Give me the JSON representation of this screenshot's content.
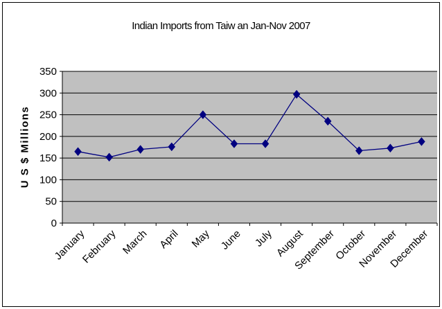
{
  "chart_data": {
    "type": "line",
    "title": "Indian Imports from Taiw an Jan-Nov 2007",
    "xlabel": "",
    "ylabel": "U S $ Millions",
    "categories": [
      "January",
      "February",
      "March",
      "April",
      "May",
      "June",
      "July",
      "August",
      "September",
      "October",
      "November",
      "December"
    ],
    "series": [
      {
        "values": [
          165,
          152,
          170,
          176,
          250,
          183,
          183,
          297,
          235,
          167,
          173,
          188
        ]
      }
    ],
    "ylim": [
      0,
      350
    ],
    "yticks": [
      0,
      50,
      100,
      150,
      200,
      250,
      300,
      350
    ],
    "grid": true,
    "legend": "none",
    "colors": {
      "plot_background": "#c0c0c0",
      "line": "#000080",
      "marker": "#000080",
      "gridline": "#000000"
    }
  }
}
